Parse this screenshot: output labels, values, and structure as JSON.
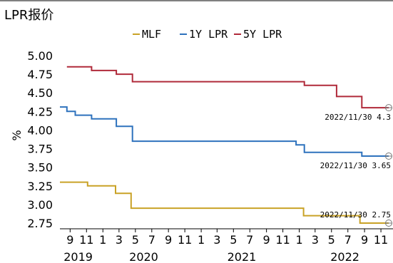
{
  "chart_data": {
    "type": "line",
    "title": "LPR报价",
    "ylabel": "%",
    "ylim": [
      2.65,
      5.05
    ],
    "yticks": [
      "5.00",
      "4.75",
      "4.50",
      "4.25",
      "4.00",
      "3.75",
      "3.50",
      "3.25",
      "3.00",
      "2.75"
    ],
    "xlim": [
      "2019-07-25",
      "2022-12-08"
    ],
    "xticks": [
      {
        "date": "2019-09-01",
        "label": "9"
      },
      {
        "date": "2019-11-01",
        "label": "11"
      },
      {
        "date": "2020-01-01",
        "label": "1"
      },
      {
        "date": "2020-03-01",
        "label": "3"
      },
      {
        "date": "2020-05-01",
        "label": "5"
      },
      {
        "date": "2020-07-01",
        "label": "7"
      },
      {
        "date": "2020-09-01",
        "label": "9"
      },
      {
        "date": "2020-11-01",
        "label": "11"
      },
      {
        "date": "2021-01-01",
        "label": "1"
      },
      {
        "date": "2021-03-01",
        "label": "3"
      },
      {
        "date": "2021-05-01",
        "label": "5"
      },
      {
        "date": "2021-07-01",
        "label": "7"
      },
      {
        "date": "2021-09-01",
        "label": "9"
      },
      {
        "date": "2021-11-01",
        "label": "11"
      },
      {
        "date": "2022-01-01",
        "label": "1"
      },
      {
        "date": "2022-03-01",
        "label": "3"
      },
      {
        "date": "2022-05-01",
        "label": "5"
      },
      {
        "date": "2022-07-01",
        "label": "7"
      },
      {
        "date": "2022-09-01",
        "label": "9"
      },
      {
        "date": "2022-11-01",
        "label": "11"
      }
    ],
    "years": [
      {
        "date": "2019-10-01",
        "label": "2019"
      },
      {
        "date": "2020-06-01",
        "label": "2020"
      },
      {
        "date": "2021-06-01",
        "label": "2021"
      },
      {
        "date": "2022-06-20",
        "label": "2022"
      }
    ],
    "legend_position": "top-center",
    "grid": false,
    "series": [
      {
        "name": "MLF",
        "color": "#c9a227",
        "points": [
          [
            "2019-07-25",
            3.3
          ],
          [
            "2019-11-05",
            3.25
          ],
          [
            "2020-02-17",
            3.15
          ],
          [
            "2020-04-15",
            2.95
          ],
          [
            "2022-01-17",
            2.85
          ],
          [
            "2022-08-15",
            2.75
          ],
          [
            "2022-11-30",
            2.75
          ]
        ]
      },
      {
        "name": "1Y LPR",
        "color": "#2e72bd",
        "points": [
          [
            "2019-07-25",
            4.31
          ],
          [
            "2019-08-20",
            4.25
          ],
          [
            "2019-09-20",
            4.2
          ],
          [
            "2019-11-20",
            4.15
          ],
          [
            "2020-02-20",
            4.05
          ],
          [
            "2020-04-20",
            3.85
          ],
          [
            "2021-12-20",
            3.8
          ],
          [
            "2022-01-20",
            3.7
          ],
          [
            "2022-08-22",
            3.65
          ],
          [
            "2022-11-30",
            3.65
          ]
        ]
      },
      {
        "name": "5Y LPR",
        "color": "#b02a3a",
        "points": [
          [
            "2019-08-20",
            4.85
          ],
          [
            "2019-11-20",
            4.8
          ],
          [
            "2020-02-20",
            4.75
          ],
          [
            "2020-04-20",
            4.65
          ],
          [
            "2022-01-20",
            4.6
          ],
          [
            "2022-05-20",
            4.45
          ],
          [
            "2022-08-22",
            4.3
          ],
          [
            "2022-11-30",
            4.3
          ]
        ]
      }
    ],
    "annotations": [
      {
        "series": "5Y LPR",
        "text": "2022/11/30 4.3"
      },
      {
        "series": "1Y LPR",
        "text": "2022/11/30 3.65"
      },
      {
        "series": "MLF",
        "text": "2022/11/30 2.75"
      }
    ]
  }
}
